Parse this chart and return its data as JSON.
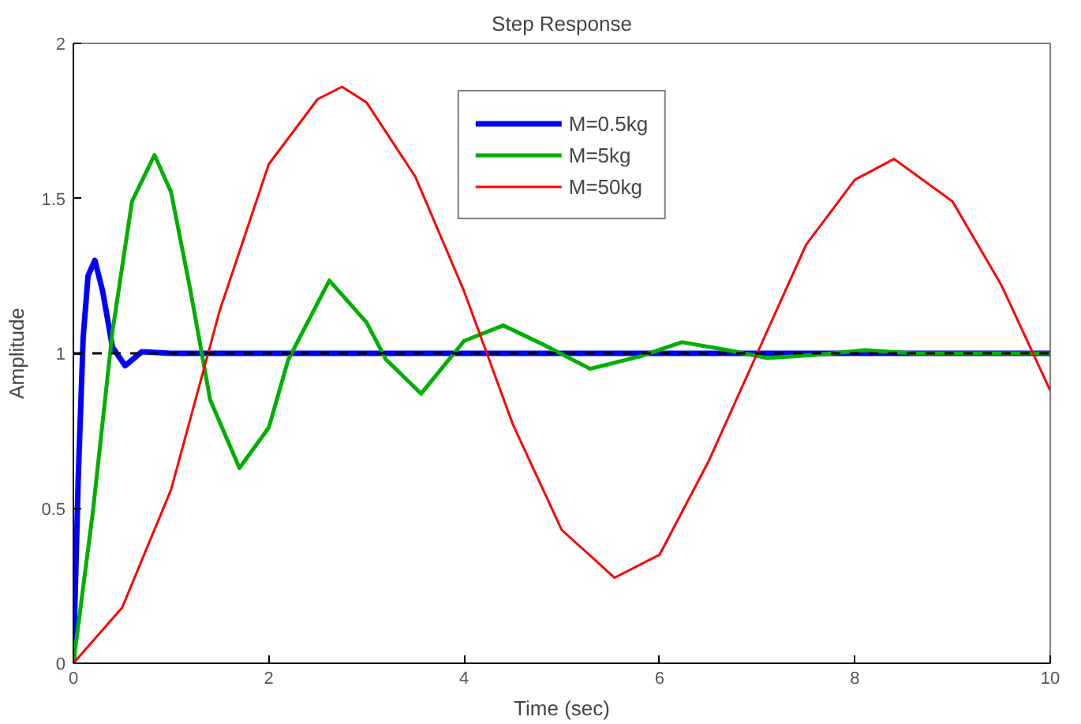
{
  "chart_data": {
    "type": "line",
    "title": "Step Response",
    "xlabel": "Time (sec)",
    "ylabel": "Amplitude",
    "xlim": [
      0,
      10
    ],
    "ylim": [
      0,
      2
    ],
    "xticks": [
      0,
      2,
      4,
      6,
      8,
      10
    ],
    "yticks": [
      0,
      0.5,
      1,
      1.5,
      2
    ],
    "grid": false,
    "legend": "top",
    "line_style": "solid",
    "marker": "none",
    "ref_lines": [
      {
        "axis": "y",
        "value": 1,
        "label": null,
        "color": "#000000",
        "line_style": "dashed"
      }
    ],
    "series": [
      {
        "name": "M=0.5kg",
        "color": "#0000ff",
        "x": [
          0,
          0.05,
          0.1,
          0.15,
          0.22,
          0.3,
          0.4,
          0.53,
          0.7,
          1.0,
          2.0,
          4.0,
          6.0,
          8.0,
          10.0
        ],
        "values": [
          0,
          0.6,
          1.05,
          1.25,
          1.3,
          1.2,
          1.02,
          0.96,
          1.005,
          1.0,
          1.0,
          1.0,
          1.0,
          1.0,
          1.0
        ]
      },
      {
        "name": "M=5kg",
        "color": "#00b000",
        "x": [
          0,
          0.2,
          0.4,
          0.6,
          0.83,
          1.0,
          1.2,
          1.4,
          1.7,
          2.0,
          2.2,
          2.62,
          3.0,
          3.2,
          3.56,
          4.0,
          4.4,
          4.8,
          5.29,
          5.8,
          6.23,
          6.7,
          7.1,
          7.6,
          8.1,
          8.6,
          9.0,
          10.0
        ],
        "values": [
          0,
          0.49,
          1.07,
          1.49,
          1.64,
          1.52,
          1.2,
          0.85,
          0.63,
          0.76,
          0.98,
          1.235,
          1.1,
          0.98,
          0.87,
          1.04,
          1.09,
          1.03,
          0.95,
          0.99,
          1.036,
          1.01,
          0.985,
          0.995,
          1.01,
          1.0,
          1.0,
          1.0
        ]
      },
      {
        "name": "M=50kg",
        "color": "#ff0000",
        "x": [
          0,
          0.5,
          1.0,
          1.5,
          2.0,
          2.5,
          2.75,
          3.0,
          3.5,
          4.0,
          4.5,
          5.0,
          5.54,
          6.0,
          6.5,
          7.0,
          7.5,
          8.0,
          8.4,
          9.0,
          9.5,
          10.0
        ],
        "values": [
          0,
          0.18,
          0.56,
          1.14,
          1.61,
          1.82,
          1.86,
          1.81,
          1.57,
          1.2,
          0.77,
          0.43,
          0.276,
          0.35,
          0.65,
          1.0,
          1.35,
          1.56,
          1.627,
          1.49,
          1.22,
          0.88
        ]
      }
    ]
  }
}
